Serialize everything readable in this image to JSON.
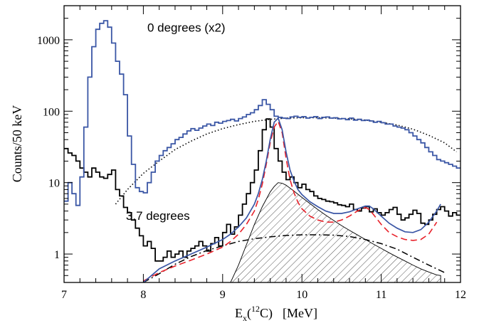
{
  "chart_data": {
    "type": "line",
    "title": "",
    "xlabel_main": "E",
    "xlabel_sub": "x",
    "xlabel_paren_open": "(",
    "xlabel_sup": "12",
    "xlabel_elem": "C)",
    "xlabel_unit": "[MeV]",
    "ylabel": "Counts/50 keV",
    "xlim": [
      7,
      12
    ],
    "ylim": [
      0.4,
      3000
    ],
    "y_scale": "log",
    "x_ticks": [
      "7",
      "8",
      "9",
      "10",
      "11",
      "12"
    ],
    "x_tick_values": [
      7,
      8,
      9,
      10,
      11,
      12
    ],
    "y_ticks": [
      "1",
      "10",
      "100",
      "1000"
    ],
    "y_tick_values": [
      1,
      10,
      100,
      1000
    ],
    "grid": false,
    "colors": {
      "blue": "#3a56a5",
      "black": "#000000",
      "red": "#e8212a",
      "hatch": "#555555"
    },
    "annotations": [
      {
        "text": "0 degrees (x2)",
        "x": 8.05,
        "y": 1300
      },
      {
        "text": "3.7 degrees",
        "x": 7.78,
        "y": 3.0
      }
    ],
    "series": [
      {
        "style": "step-blue",
        "x": [
          7.0,
          7.05,
          7.1,
          7.15,
          7.2,
          7.25,
          7.3,
          7.35,
          7.4,
          7.45,
          7.5,
          7.55,
          7.6,
          7.65,
          7.7,
          7.75,
          7.8,
          7.85,
          7.9,
          7.95,
          8.0,
          8.05,
          8.1,
          8.15,
          8.2,
          8.25,
          8.3,
          8.35,
          8.4,
          8.45,
          8.5,
          8.55,
          8.6,
          8.65,
          8.7,
          8.75,
          8.8,
          8.85,
          8.9,
          8.95,
          9.0,
          9.05,
          9.1,
          9.15,
          9.2,
          9.25,
          9.3,
          9.35,
          9.4,
          9.45,
          9.5,
          9.55,
          9.6,
          9.65,
          9.7,
          9.75,
          9.8,
          9.85,
          9.9,
          9.95,
          10.0,
          10.05,
          10.1,
          10.15,
          10.2,
          10.25,
          10.3,
          10.35,
          10.4,
          10.45,
          10.5,
          10.55,
          10.6,
          10.65,
          10.7,
          10.75,
          10.8,
          10.85,
          10.9,
          10.95,
          11.0,
          11.05,
          11.1,
          11.15,
          11.2,
          11.25,
          11.3,
          11.35,
          11.4,
          11.45,
          11.5,
          11.55,
          11.6,
          11.65,
          11.7,
          11.75,
          11.8,
          11.85,
          11.9,
          11.95
        ],
        "y": [
          5.5,
          10,
          7,
          4.8,
          12,
          60,
          300,
          800,
          1400,
          1700,
          1850,
          1500,
          900,
          500,
          330,
          170,
          45,
          18,
          8.5,
          7.5,
          7.2,
          10,
          14,
          20,
          24,
          28,
          31,
          35,
          40,
          43,
          48,
          53,
          57,
          54,
          58,
          62,
          66,
          63,
          70,
          68,
          72,
          74,
          77,
          73,
          79,
          83,
          90,
          95,
          105,
          120,
          145,
          125,
          105,
          85,
          82,
          80,
          79,
          83,
          85,
          82,
          84,
          80,
          82,
          84,
          79,
          82,
          83,
          80,
          81,
          78,
          79,
          76,
          80,
          75,
          77,
          74,
          75,
          73,
          70,
          72,
          69,
          66,
          66,
          62,
          60,
          58,
          55,
          50,
          45,
          40,
          36,
          31,
          27,
          24,
          21,
          20,
          19,
          18,
          17,
          16
        ]
      },
      {
        "style": "step-black",
        "x": [
          7.0,
          7.05,
          7.1,
          7.15,
          7.2,
          7.25,
          7.3,
          7.35,
          7.4,
          7.45,
          7.5,
          7.55,
          7.6,
          7.65,
          7.7,
          7.75,
          7.8,
          7.85,
          7.9,
          7.95,
          8.0,
          8.05,
          8.1,
          8.15,
          8.2,
          8.25,
          8.3,
          8.35,
          8.4,
          8.45,
          8.5,
          8.55,
          8.6,
          8.65,
          8.7,
          8.75,
          8.8,
          8.85,
          8.9,
          8.95,
          9.0,
          9.05,
          9.1,
          9.15,
          9.2,
          9.25,
          9.3,
          9.35,
          9.4,
          9.45,
          9.5,
          9.55,
          9.6,
          9.65,
          9.7,
          9.75,
          9.8,
          9.85,
          9.9,
          9.95,
          10.0,
          10.05,
          10.1,
          10.15,
          10.2,
          10.25,
          10.3,
          10.35,
          10.4,
          10.45,
          10.5,
          10.55,
          10.6,
          10.65,
          10.7,
          10.75,
          10.8,
          10.85,
          10.9,
          10.95,
          11.0,
          11.05,
          11.1,
          11.15,
          11.2,
          11.25,
          11.3,
          11.35,
          11.4,
          11.45,
          11.5,
          11.55,
          11.6,
          11.65,
          11.7,
          11.75,
          11.8,
          11.85,
          11.9,
          11.95
        ],
        "y": [
          30,
          26,
          24,
          20,
          16,
          14,
          12,
          16,
          14,
          12,
          11.5,
          13,
          15,
          8,
          6.5,
          4.5,
          3.8,
          3.0,
          2.3,
          1.8,
          1.3,
          1.5,
          1.2,
          0.8,
          0.8,
          0.9,
          1.1,
          0.9,
          1.0,
          1.1,
          0.9,
          1.1,
          1.2,
          1.3,
          1.5,
          1.3,
          1.1,
          1.4,
          1.7,
          1.3,
          2.0,
          2.6,
          1.9,
          2.4,
          3.5,
          5.0,
          7.0,
          10,
          15,
          28,
          55,
          78,
          60,
          30,
          20,
          14,
          11,
          12,
          10,
          8.5,
          9.5,
          8.0,
          7.5,
          6.5,
          6.0,
          5.8,
          5.5,
          5.4,
          5.2,
          4.9,
          4.8,
          4.6,
          5.0,
          4.2,
          4.0,
          4.4,
          4.6,
          3.9,
          4.3,
          3.8,
          3.5,
          3.8,
          4.2,
          4.5,
          3.6,
          3.0,
          3.2,
          3.6,
          4.1,
          3.7,
          2.7,
          2.6,
          3.0,
          3.6,
          4.2,
          4.6,
          4.0,
          3.4,
          3.8,
          3.5
        ]
      },
      {
        "style": "dotted",
        "x": [
          7.65,
          7.8,
          8.0,
          8.2,
          8.4,
          8.6,
          8.8,
          9.0,
          9.2,
          9.4,
          9.6,
          9.8,
          10.0,
          10.2,
          10.4,
          10.6,
          10.8,
          11.0,
          11.2,
          11.4,
          11.6,
          11.8,
          11.95
        ],
        "y": [
          5,
          8,
          13.5,
          20,
          29,
          38,
          48,
          57,
          65,
          72,
          77,
          80,
          81,
          81,
          80,
          78,
          75,
          70,
          64,
          56,
          46,
          36,
          27
        ]
      },
      {
        "style": "blue-fit",
        "x": [
          8.0,
          8.2,
          8.4,
          8.6,
          8.8,
          9.0,
          9.1,
          9.2,
          9.3,
          9.4,
          9.45,
          9.5,
          9.55,
          9.6,
          9.65,
          9.7,
          9.75,
          9.8,
          9.85,
          9.9,
          9.95,
          10.0,
          10.1,
          10.2,
          10.3,
          10.4,
          10.5,
          10.6,
          10.7,
          10.8,
          10.85,
          10.9,
          11.0,
          11.1,
          11.2,
          11.3,
          11.4,
          11.5,
          11.6,
          11.7,
          11.75
        ],
        "y": [
          0.4,
          0.62,
          0.8,
          1.0,
          1.25,
          1.6,
          1.9,
          2.4,
          3.2,
          5.0,
          7.0,
          11,
          20,
          40,
          70,
          80,
          55,
          27,
          15,
          10.5,
          8.0,
          6.8,
          5.4,
          4.6,
          4.0,
          3.7,
          3.7,
          3.9,
          4.3,
          4.7,
          4.7,
          4.3,
          3.4,
          2.7,
          2.3,
          2.05,
          2.0,
          2.2,
          2.8,
          4.0,
          5.0
        ]
      },
      {
        "style": "red-dashed",
        "x": [
          8.0,
          8.2,
          8.4,
          8.6,
          8.8,
          9.0,
          9.1,
          9.2,
          9.3,
          9.4,
          9.45,
          9.5,
          9.55,
          9.6,
          9.65,
          9.7,
          9.75,
          9.8,
          9.85,
          9.9,
          9.95,
          10.0,
          10.1,
          10.2,
          10.3,
          10.4,
          10.5,
          10.6,
          10.7,
          10.8,
          10.85,
          10.9,
          11.0,
          11.1,
          11.2,
          11.3,
          11.4,
          11.5,
          11.6,
          11.7
        ],
        "y": [
          0.42,
          0.55,
          0.68,
          0.82,
          1.0,
          1.25,
          1.5,
          1.9,
          2.6,
          4.0,
          5.8,
          9.5,
          18,
          36,
          60,
          72,
          50,
          22,
          11,
          7.2,
          5.3,
          4.3,
          3.4,
          3.0,
          2.8,
          2.8,
          3.0,
          3.4,
          4.0,
          4.5,
          4.2,
          3.6,
          2.6,
          2.0,
          1.75,
          1.6,
          1.55,
          1.6,
          1.9,
          2.8
        ]
      },
      {
        "style": "dash-dot",
        "x": [
          8.0,
          8.2,
          8.4,
          8.6,
          8.8,
          9.0,
          9.2,
          9.4,
          9.6,
          9.8,
          10.0,
          10.2,
          10.4,
          10.6,
          10.8,
          11.0,
          11.2,
          11.4,
          11.6,
          11.8
        ],
        "y": [
          0.4,
          0.53,
          0.72,
          0.92,
          1.12,
          1.3,
          1.5,
          1.64,
          1.74,
          1.82,
          1.86,
          1.86,
          1.84,
          1.76,
          1.6,
          1.4,
          1.17,
          0.9,
          0.7,
          0.55
        ]
      },
      {
        "style": "hatched-peak",
        "x": [
          9.1,
          9.2,
          9.3,
          9.4,
          9.5,
          9.6,
          9.65,
          9.7,
          9.75,
          9.8,
          9.9,
          10.0,
          10.1,
          10.2,
          10.3,
          10.4,
          10.5,
          10.6,
          10.7,
          10.8,
          10.9,
          11.0,
          11.1,
          11.2,
          11.3,
          11.4,
          11.5,
          11.6,
          11.7,
          11.75
        ],
        "y": [
          0.4,
          0.7,
          1.35,
          2.6,
          4.6,
          7.4,
          8.8,
          10,
          9.8,
          9.2,
          7.6,
          6.2,
          5.1,
          4.2,
          3.5,
          2.95,
          2.5,
          2.15,
          1.85,
          1.6,
          1.38,
          1.2,
          1.04,
          0.91,
          0.8,
          0.7,
          0.62,
          0.56,
          0.51,
          0.5
        ]
      }
    ]
  }
}
